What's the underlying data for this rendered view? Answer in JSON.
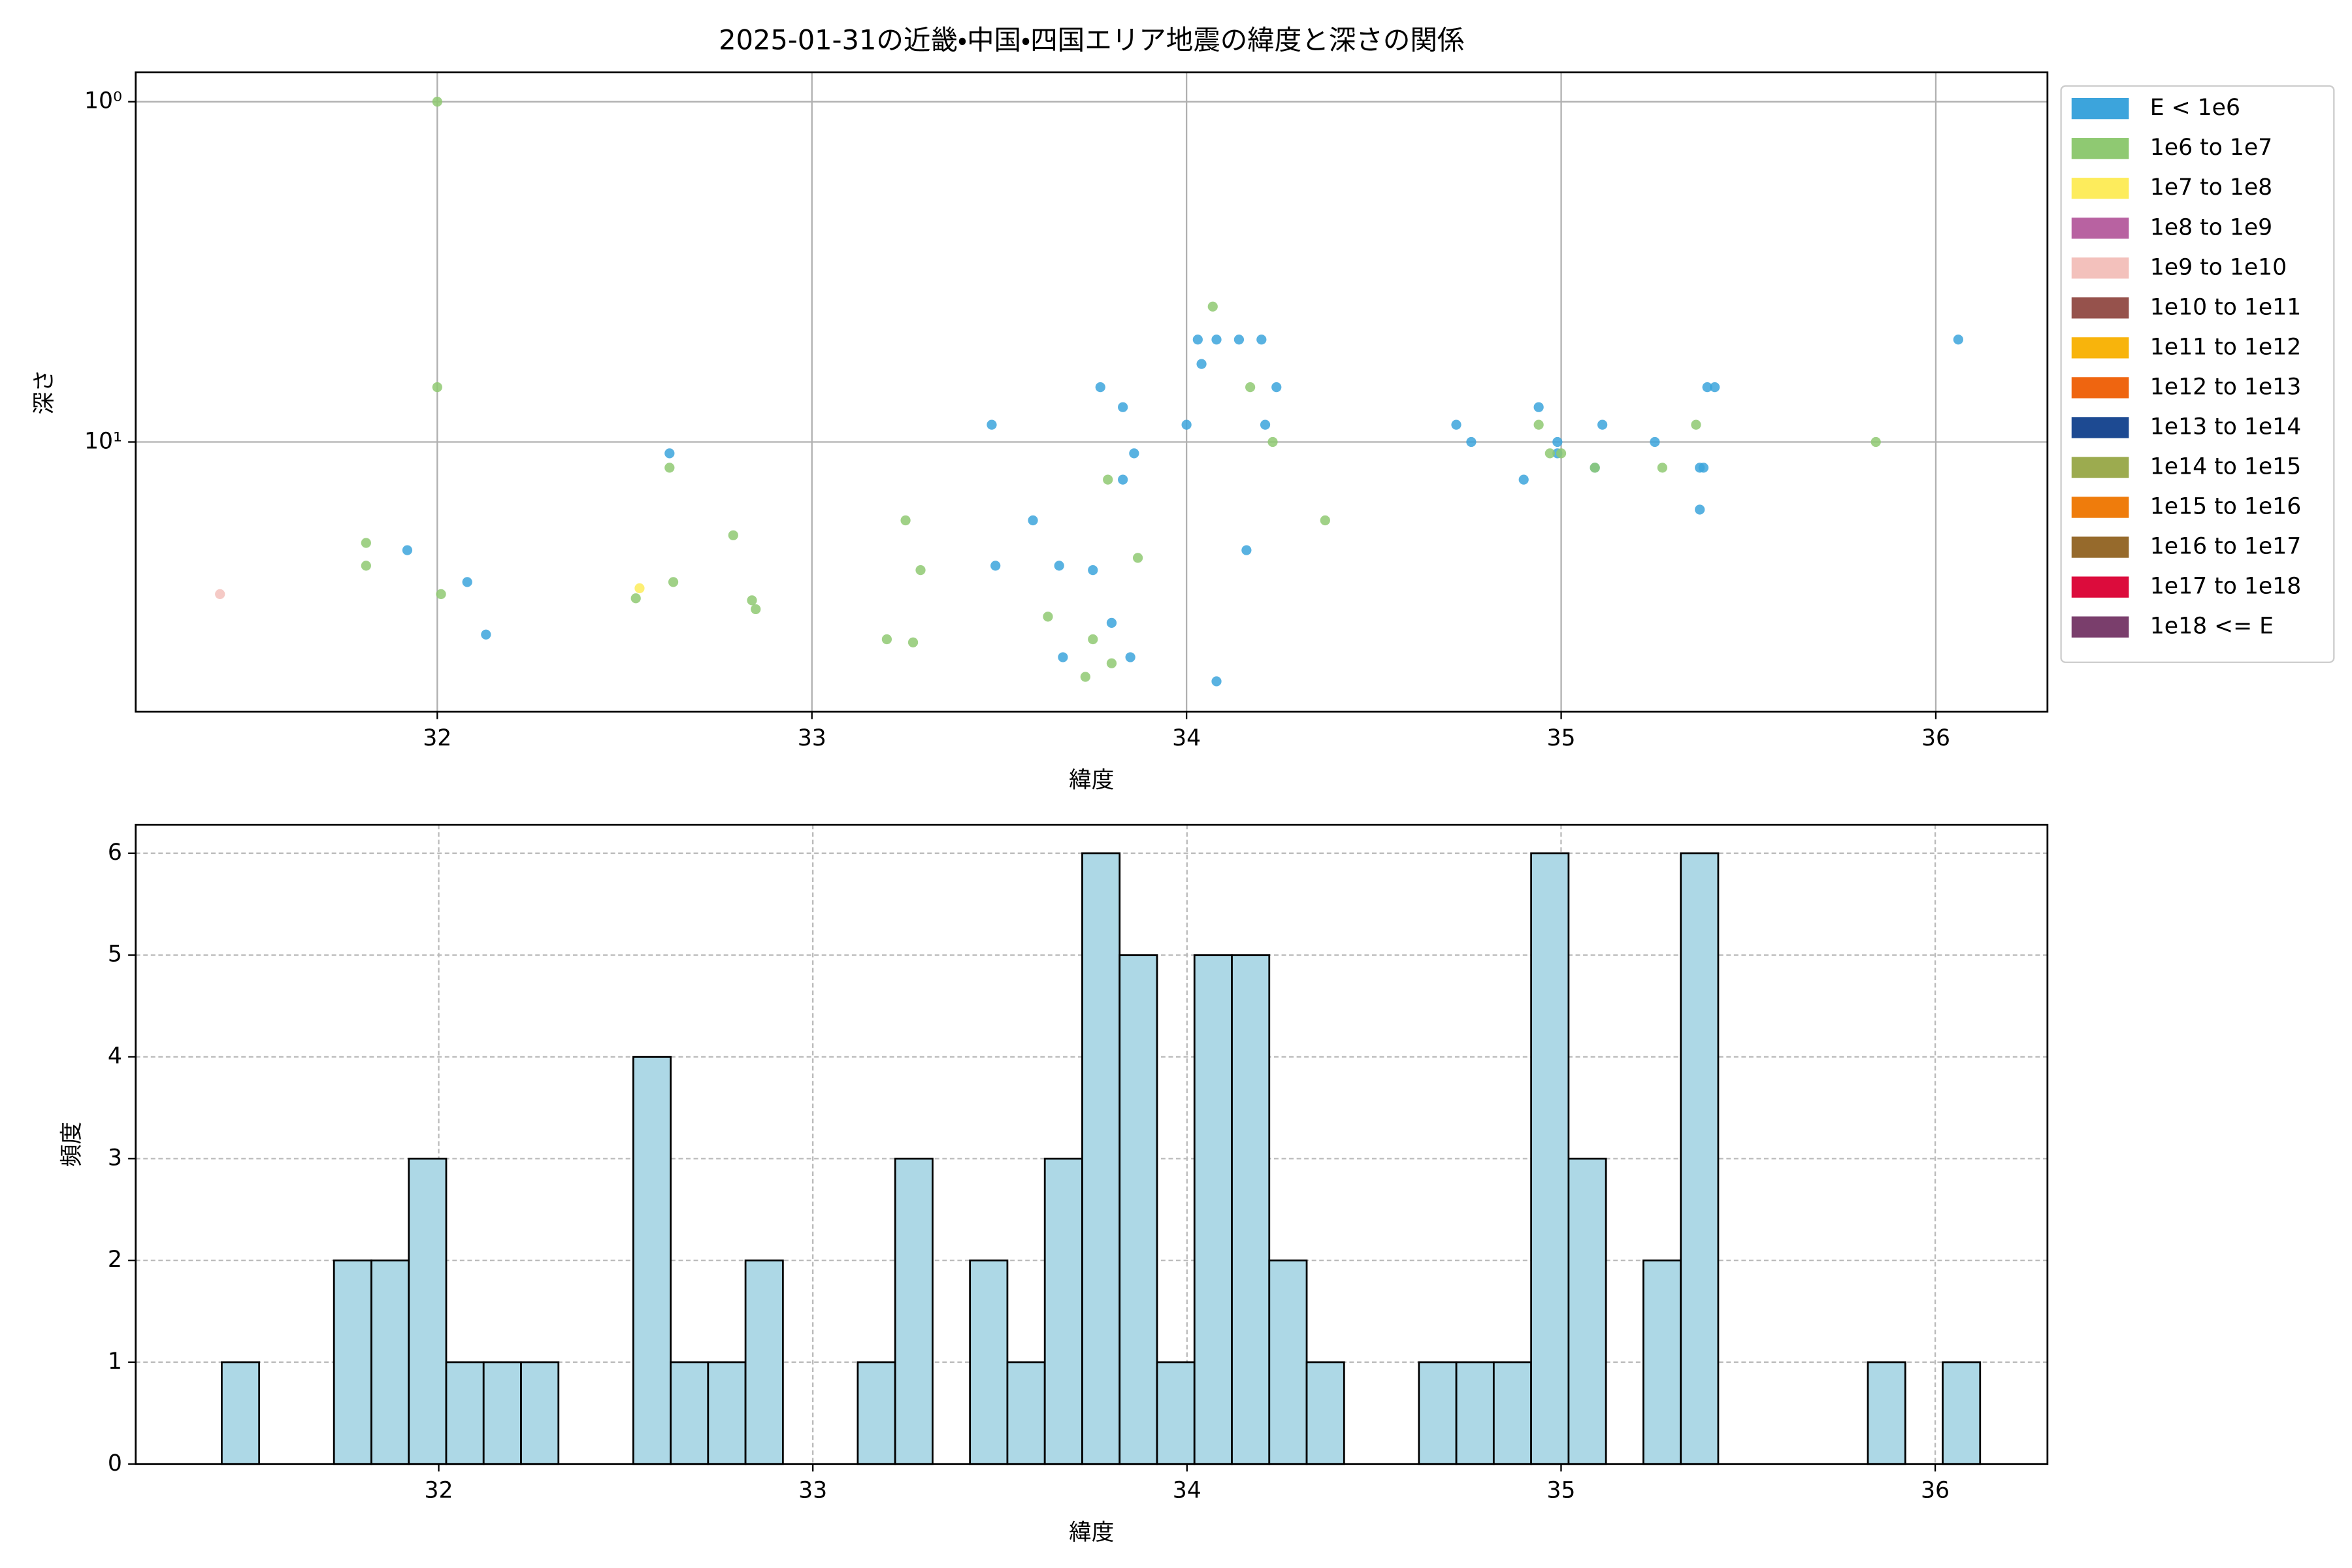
{
  "chart_data": [
    {
      "type": "scatter",
      "title": "2025-01-31の近畿・中国・四国エリア地震の緯度と深さの関係",
      "xlabel": "緯度",
      "ylabel": "深さ",
      "xlim": [
        31.195,
        36.298
      ],
      "xticks": [
        32,
        33,
        34,
        35,
        36
      ],
      "ylim": [
        0.82,
        62
      ],
      "yscale": "log",
      "y_inverted": true,
      "yticks": [
        {
          "value": 1,
          "label": "10⁰"
        },
        {
          "value": 10,
          "label": "10¹"
        }
      ],
      "grid": true,
      "legend": "outside-right",
      "series": [
        {
          "name": "E < 1e6",
          "color": "#3ca4dc",
          "x": [
            31.92,
            32.08,
            32.13,
            32.62,
            33.48,
            33.49,
            33.59,
            33.66,
            33.67,
            33.75,
            33.77,
            33.8,
            33.83,
            33.83,
            33.85,
            33.86,
            34.0,
            34.03,
            34.04,
            34.08,
            34.08,
            34.14,
            34.16,
            34.2,
            34.21,
            34.24,
            34.72,
            34.76,
            34.9,
            34.94,
            34.99,
            34.99,
            35.09,
            35.11,
            35.25,
            35.37,
            35.38,
            35.37,
            35.39,
            35.41,
            36.06
          ],
          "values": [
            20.8,
            25.8,
            36.8,
            10.8,
            8.9,
            23.1,
            17.0,
            23.1,
            42.9,
            23.8,
            6.9,
            34.0,
            7.9,
            12.9,
            42.9,
            10.8,
            8.9,
            5.0,
            5.9,
            5.0,
            50.5,
            5.0,
            20.8,
            5.0,
            8.9,
            6.9,
            8.9,
            10,
            12.9,
            7.9,
            10,
            10.8,
            11.9,
            8.9,
            10,
            11.9,
            11.9,
            15.8,
            6.9,
            6.9,
            5.0
          ]
        },
        {
          "name": "1e6 to 1e7",
          "color": "#8fc972",
          "x": [
            32.0,
            32.0,
            31.81,
            31.81,
            32.01,
            32.53,
            32.62,
            32.63,
            32.79,
            32.84,
            32.85,
            33.2,
            33.25,
            33.27,
            33.29,
            33.63,
            33.73,
            33.75,
            33.79,
            33.8,
            33.87,
            34.07,
            34.17,
            34.23,
            34.37,
            34.94,
            34.97,
            35.0,
            35.09,
            35.27,
            35.36,
            35.84
          ],
          "values": [
            1.0,
            6.9,
            19.8,
            23.1,
            28.0,
            28.8,
            11.9,
            25.8,
            18.8,
            29.2,
            31.0,
            38.0,
            17.0,
            38.8,
            23.8,
            32.6,
            49.0,
            38.0,
            12.9,
            44.7,
            21.9,
            4.0,
            6.9,
            10,
            17.0,
            8.9,
            10.8,
            10.8,
            11.9,
            11.9,
            8.9,
            10
          ]
        },
        {
          "name": "1e7 to 1e8",
          "color": "#fdec5c",
          "x": [
            32.54
          ],
          "values": [
            26.9
          ]
        },
        {
          "name": "1e8 to 1e9",
          "color": "#b862a1",
          "x": [],
          "values": []
        },
        {
          "name": "1e9 to 1e10",
          "color": "#f3c1bc",
          "x": [
            31.42
          ],
          "values": [
            28.0
          ]
        },
        {
          "name": "1e10 to 1e11",
          "color": "#96524c",
          "x": [],
          "values": []
        },
        {
          "name": "1e11 to 1e12",
          "color": "#f8b40c",
          "x": [],
          "values": []
        },
        {
          "name": "1e12 to 1e13",
          "color": "#ef6510",
          "x": [],
          "values": []
        },
        {
          "name": "1e13 to 1e14",
          "color": "#1d4a92",
          "x": [],
          "values": []
        },
        {
          "name": "1e14 to 1e15",
          "color": "#9cab4f",
          "x": [],
          "values": []
        },
        {
          "name": "1e15 to 1e16",
          "color": "#ef7c0c",
          "x": [],
          "values": []
        },
        {
          "name": "1e16 to 1e17",
          "color": "#966a2c",
          "x": [],
          "values": []
        },
        {
          "name": "1e17 to 1e18",
          "color": "#dc0c3c",
          "x": [],
          "values": []
        },
        {
          "name": "1e18 <= E",
          "color": "#7a3e6c",
          "x": [],
          "values": []
        }
      ]
    },
    {
      "type": "histogram",
      "xlabel": "緯度",
      "ylabel": "頻度",
      "xlim": [
        31.19,
        36.3
      ],
      "xticks": [
        32,
        33,
        34,
        35,
        36
      ],
      "ylim": [
        0,
        6.28
      ],
      "yticks": [
        0,
        1,
        2,
        3,
        4,
        5,
        6
      ],
      "grid": true,
      "color": "#add8e6",
      "edgecolor": "#000000",
      "bins": [
        31.42,
        31.52,
        31.62,
        31.72,
        31.82,
        31.92,
        32.02,
        32.12,
        32.22,
        32.32,
        32.42,
        32.52,
        32.62,
        32.72,
        32.82,
        32.92,
        33.02,
        33.12,
        33.22,
        33.32,
        33.42,
        33.52,
        33.62,
        33.72,
        33.82,
        33.92,
        34.02,
        34.12,
        34.22,
        34.32,
        34.42,
        34.52,
        34.62,
        34.72,
        34.82,
        34.92,
        35.02,
        35.12,
        35.22,
        35.32,
        35.42,
        35.52,
        35.62,
        35.72,
        35.82,
        35.92,
        36.02,
        36.12
      ],
      "values": [
        1,
        0,
        0,
        2,
        2,
        3,
        1,
        1,
        1,
        0,
        0,
        4,
        1,
        1,
        2,
        0,
        0,
        1,
        3,
        0,
        2,
        1,
        3,
        6,
        5,
        1,
        5,
        5,
        2,
        1,
        0,
        0,
        1,
        1,
        1,
        6,
        3,
        0,
        2,
        6,
        0,
        0,
        0,
        0,
        1,
        0,
        1
      ]
    }
  ]
}
